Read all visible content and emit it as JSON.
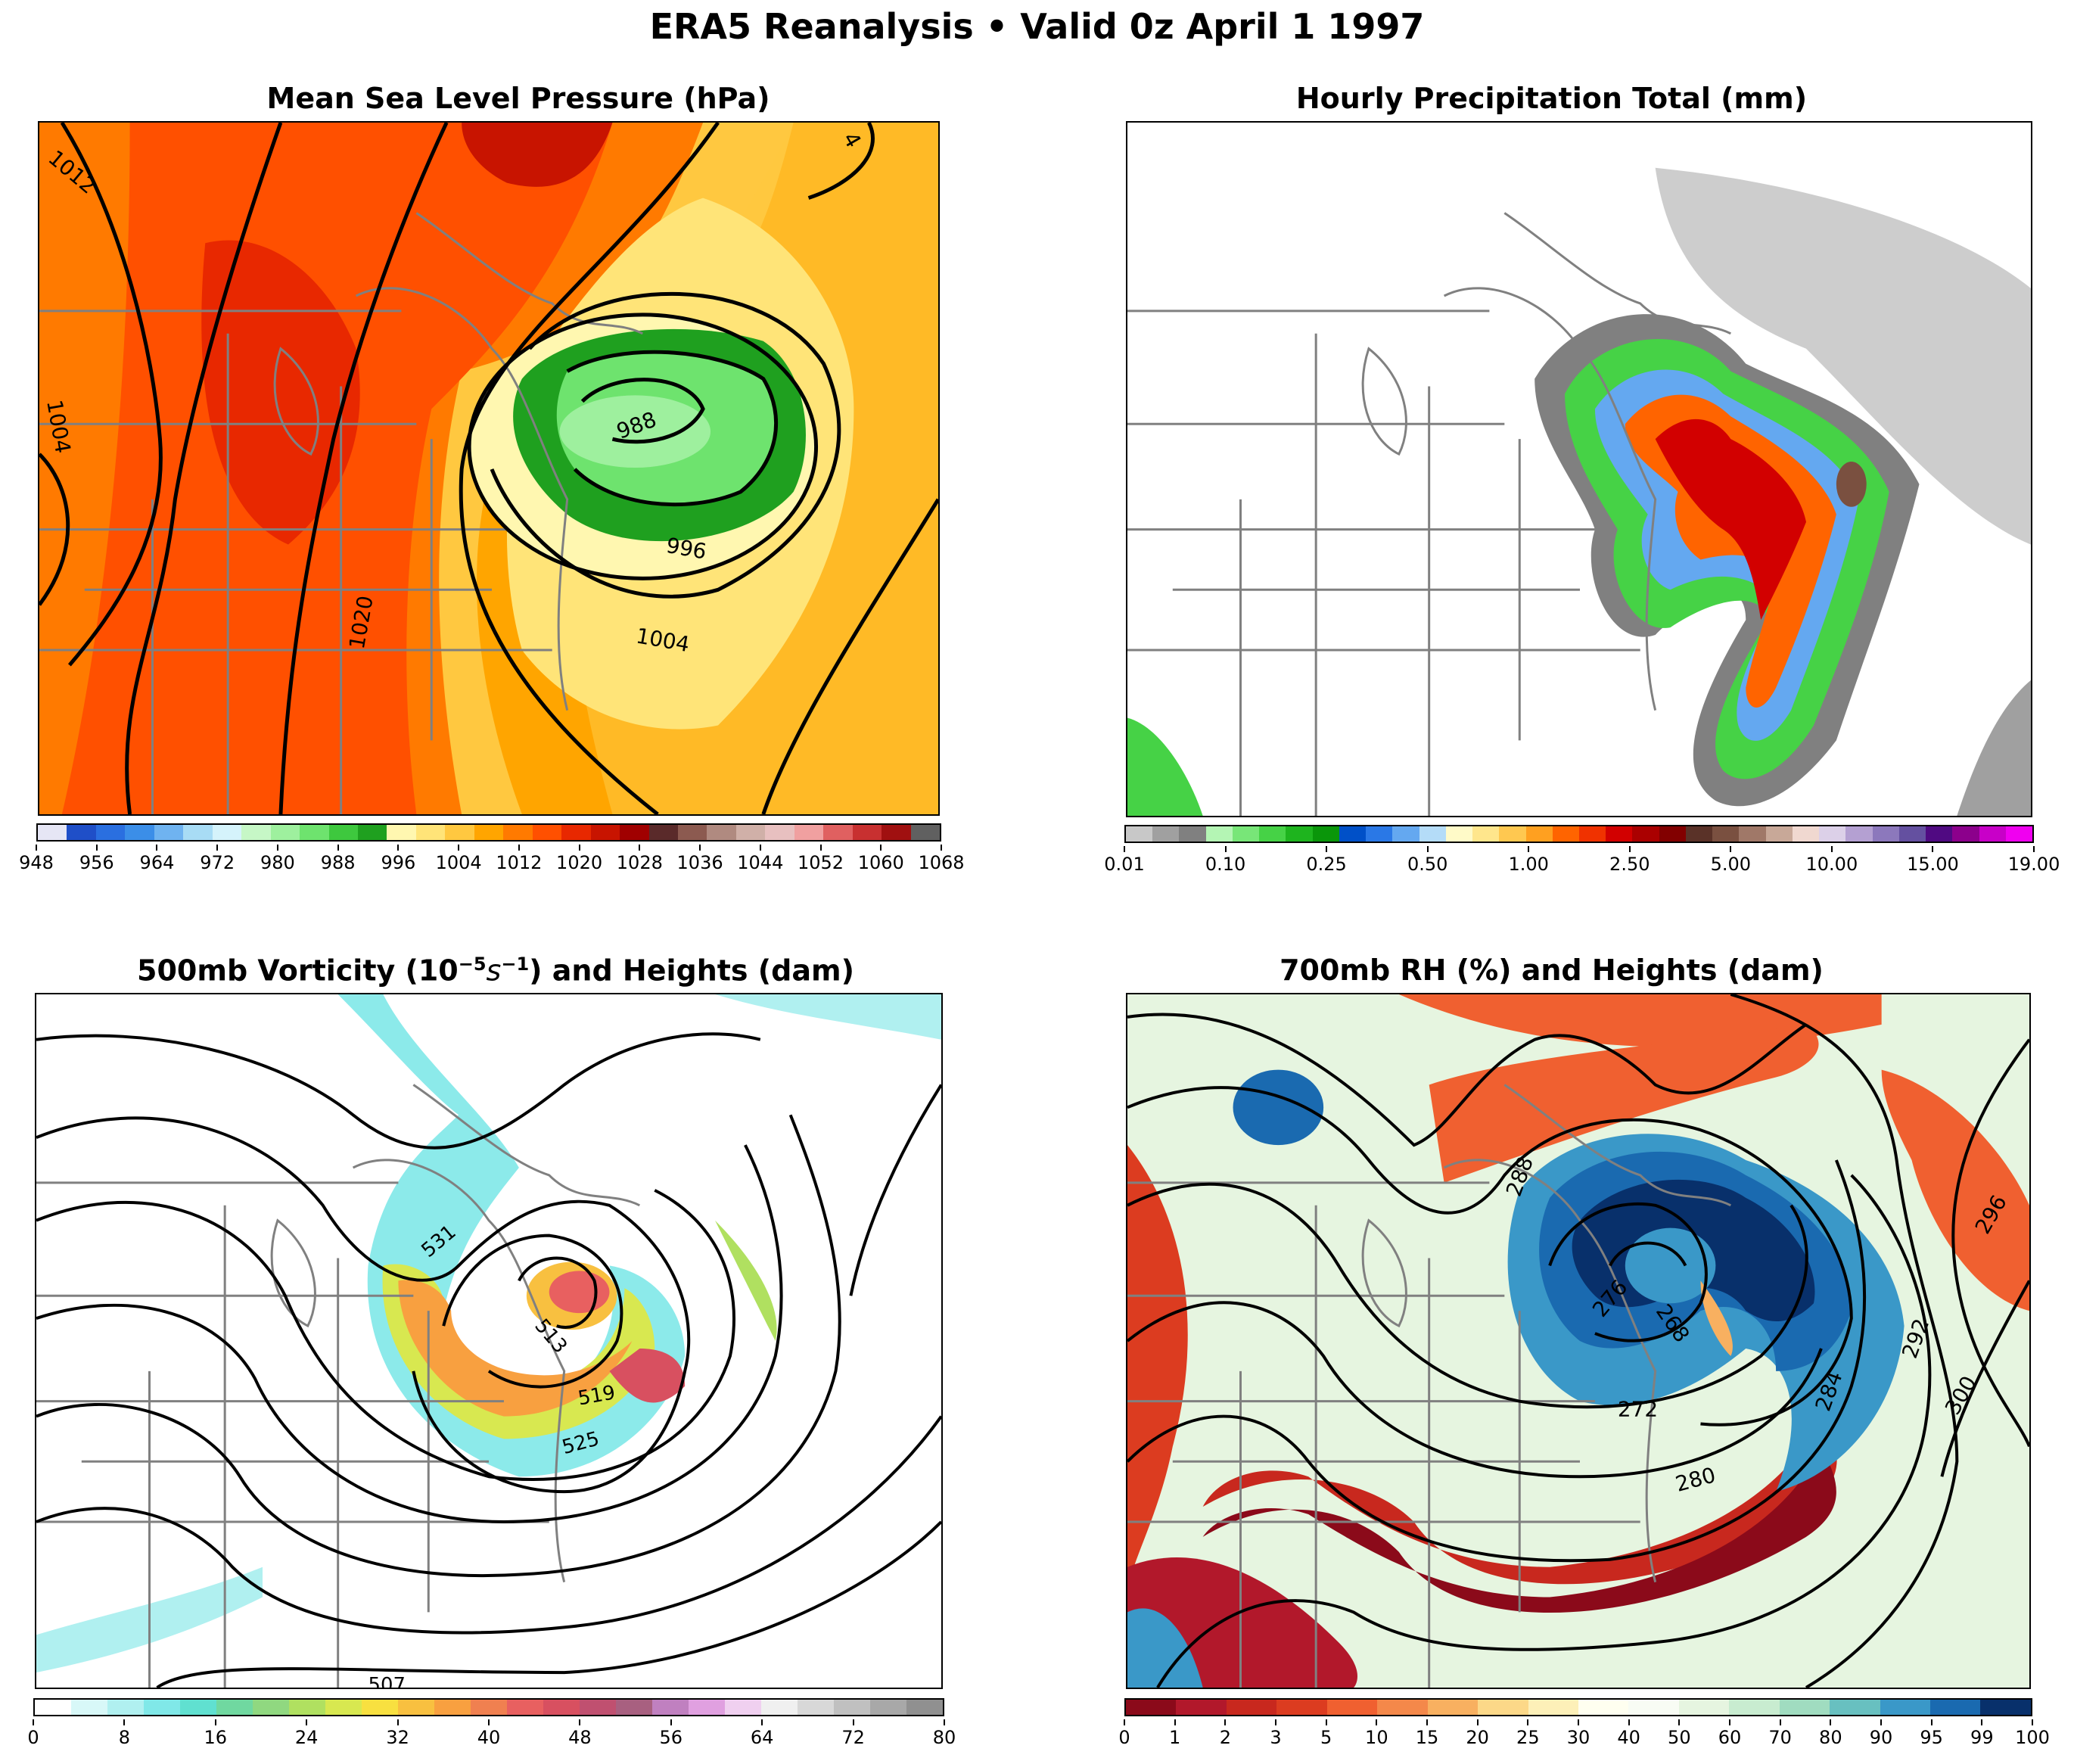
{
  "title": "ERA5 Reanalysis • Valid 0z April 1 1997",
  "panels": {
    "mslp": {
      "title": "Mean Sea Level Pressure (hPa)",
      "contour_labels": [
        "1012",
        "1004",
        "988",
        "996",
        "1004",
        "1020",
        "4"
      ],
      "colorbar_ticks": [
        "948",
        "956",
        "964",
        "972",
        "980",
        "988",
        "996",
        "1004",
        "1012",
        "1020",
        "1028",
        "1036",
        "1044",
        "1052",
        "1060",
        "1068"
      ],
      "colorbar_colors": [
        "#e6e6f5",
        "#1f4fc8",
        "#2a6fe0",
        "#3b8ee8",
        "#6fb3f0",
        "#a8dcf5",
        "#d5f3fb",
        "#c6f7c6",
        "#9ef09e",
        "#6ee36e",
        "#3ec83e",
        "#1fa01f",
        "#fff7b0",
        "#ffe478",
        "#ffc840",
        "#ffa500",
        "#ff7a00",
        "#ff5000",
        "#e82800",
        "#c81400",
        "#a00000",
        "#5a2a2a",
        "#8c5a50",
        "#b08a80",
        "#d0b0a8",
        "#e8c0c0",
        "#f0a0a0",
        "#e06060",
        "#c83030",
        "#a01010",
        "#606060"
      ]
    },
    "precip": {
      "title": "Hourly Precipitation Total (mm)",
      "colorbar_ticks": [
        "0.01",
        "0.10",
        "0.25",
        "0.50",
        "1.00",
        "2.50",
        "5.00",
        "10.00",
        "15.00",
        "19.00"
      ],
      "colorbar_colors": [
        "#c8c8c8",
        "#a0a0a0",
        "#808080",
        "#b4f5b4",
        "#78e678",
        "#46d246",
        "#1eb41e",
        "#0a960a",
        "#0050c8",
        "#2a78e6",
        "#64a8f0",
        "#b4dcf8",
        "#fffac8",
        "#ffe68c",
        "#ffc850",
        "#ffa020",
        "#ff6400",
        "#f03200",
        "#d20000",
        "#aa0000",
        "#820000",
        "#5a3228",
        "#7a5040",
        "#a07868",
        "#c8a898",
        "#f0d8d0",
        "#dcd0e8",
        "#b4a0d2",
        "#8c78bc",
        "#6450a0",
        "#500a82",
        "#8c008c",
        "#c800c8",
        "#f000f0"
      ]
    },
    "vort": {
      "title_main": "500mb Vorticity (10",
      "title_exp": "−5",
      "title_mid": "s",
      "title_exp2": "−1",
      "title_end": ") and Heights (dam)",
      "contour_labels": [
        "531",
        "513",
        "519",
        "525",
        "507"
      ],
      "colorbar_ticks": [
        "0",
        "8",
        "16",
        "24",
        "32",
        "40",
        "48",
        "56",
        "64",
        "72",
        "80"
      ],
      "colorbar_colors": [
        "#ffffff",
        "#d8f8f8",
        "#b0f0f0",
        "#80e8e8",
        "#60e0d0",
        "#70d8a0",
        "#90d880",
        "#b0e060",
        "#d8e850",
        "#f8e040",
        "#f8c040",
        "#f8a040",
        "#f08050",
        "#e86060",
        "#d85060",
        "#c05070",
        "#a86080",
        "#c080c0",
        "#e0a0e0",
        "#f0d0f0",
        "#f0f0f0",
        "#d8d8d8",
        "#c0c0c0",
        "#a8a8a8",
        "#909090"
      ]
    },
    "rh": {
      "title": "700mb RH (%) and Heights (dam)",
      "contour_labels": [
        "288",
        "276",
        "268",
        "272",
        "280",
        "284",
        "292",
        "296",
        "300"
      ],
      "colorbar_ticks": [
        "0",
        "1",
        "2",
        "3",
        "5",
        "10",
        "15",
        "20",
        "25",
        "30",
        "40",
        "50",
        "60",
        "70",
        "80",
        "90",
        "95",
        "99",
        "100"
      ],
      "colorbar_colors": [
        "#8b0a1a",
        "#b2182b",
        "#c8281e",
        "#dc3c20",
        "#f06030",
        "#f4884a",
        "#f8b060",
        "#fcd888",
        "#fdf0b8",
        "#fffff0",
        "#f8fcf4",
        "#e6f5e0",
        "#c8ecd0",
        "#a0dcc0",
        "#68c0c0",
        "#3a98c8",
        "#1a6ab0",
        "#08306b"
      ]
    }
  }
}
